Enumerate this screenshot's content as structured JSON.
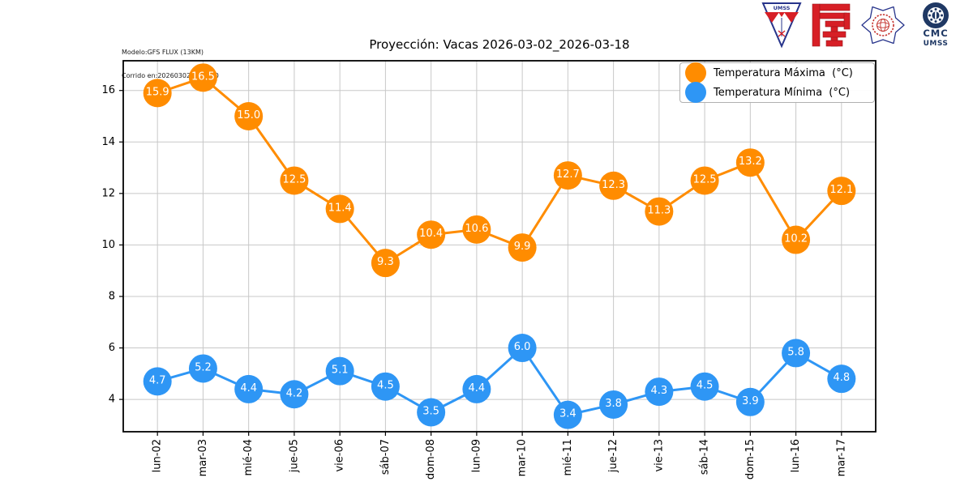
{
  "header": {
    "model_line1": "Modelo:GFS FLUX (13KM)",
    "model_line2": "Corrido en:20260302 Ciclo:00",
    "title": "Proyección: Vacas 2026-03-02_2026-03-18"
  },
  "logos": {
    "umss_pennant_text": "UMSS",
    "cmc_line1": "CMC",
    "cmc_line2": "UMSS"
  },
  "legend": {
    "entries": [
      {
        "label": "Temperatura Máxima  (°C)",
        "color": "#ff8c00"
      },
      {
        "label": "Temperatura Mínima  (°C)",
        "color": "#2e96f5"
      }
    ]
  },
  "chart_data": {
    "type": "line",
    "title": "Proyección: Vacas 2026-03-02_2026-03-18",
    "categories": [
      "lun-02",
      "mar-03",
      "mié-04",
      "jue-05",
      "vie-06",
      "sáb-07",
      "dom-08",
      "lun-09",
      "mar-10",
      "mié-11",
      "jue-12",
      "vie-13",
      "sáb-14",
      "dom-15",
      "lun-16",
      "mar-17"
    ],
    "series": [
      {
        "name": "Temperatura Máxima  (°C)",
        "color": "#ff8c00",
        "values": [
          15.9,
          16.5,
          15.0,
          12.5,
          11.4,
          9.3,
          10.4,
          10.6,
          9.9,
          12.7,
          12.3,
          11.3,
          12.5,
          13.2,
          10.2,
          12.1
        ]
      },
      {
        "name": "Temperatura Mínima  (°C)",
        "color": "#2e96f5",
        "values": [
          4.7,
          5.2,
          4.4,
          4.2,
          5.1,
          4.5,
          3.5,
          4.4,
          6.0,
          3.4,
          3.8,
          4.3,
          4.5,
          3.9,
          5.8,
          4.8
        ]
      }
    ],
    "xlabel": "",
    "ylabel": "",
    "yticks": [
      4,
      6,
      8,
      10,
      12,
      14,
      16
    ],
    "ylim": [
      2.745,
      17.155
    ],
    "grid": true,
    "grid_color": "#c8c8c8",
    "legend_position": "upper right",
    "marker": "circle",
    "data_labels": true,
    "data_label_color": "#ffffff"
  }
}
